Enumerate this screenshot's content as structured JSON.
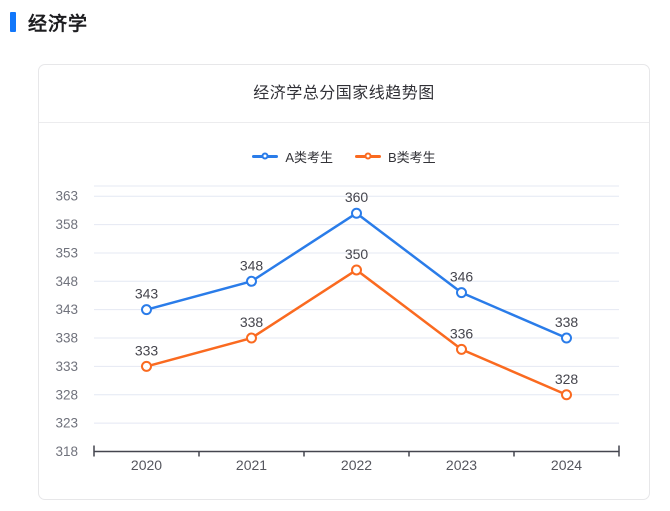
{
  "page": {
    "section_title": "经济学"
  },
  "chart_data": {
    "type": "line",
    "title": "经济学总分国家线趋势图",
    "categories": [
      "2020",
      "2021",
      "2022",
      "2023",
      "2024"
    ],
    "series": [
      {
        "name": "A类考生",
        "color": "#2a7ce9",
        "values": [
          343,
          348,
          360,
          346,
          338
        ]
      },
      {
        "name": "B类考生",
        "color": "#fa6a20",
        "values": [
          333,
          338,
          350,
          336,
          328
        ]
      }
    ],
    "yticks": [
      318,
      323,
      328,
      333,
      338,
      343,
      348,
      353,
      358,
      363
    ],
    "ylim": [
      318,
      364.8
    ],
    "xlabel": "",
    "ylabel": "",
    "grid": true,
    "legend_position": "top",
    "marker": "hollow-circle"
  },
  "colors": {
    "accent_blue": "#1277fa",
    "series_a": "#2a7ce9",
    "series_b": "#fa6a20",
    "gridline": "#e4e8f3",
    "axis": "#44454f",
    "tick_label": "#70727c",
    "data_label": "#45454d"
  }
}
